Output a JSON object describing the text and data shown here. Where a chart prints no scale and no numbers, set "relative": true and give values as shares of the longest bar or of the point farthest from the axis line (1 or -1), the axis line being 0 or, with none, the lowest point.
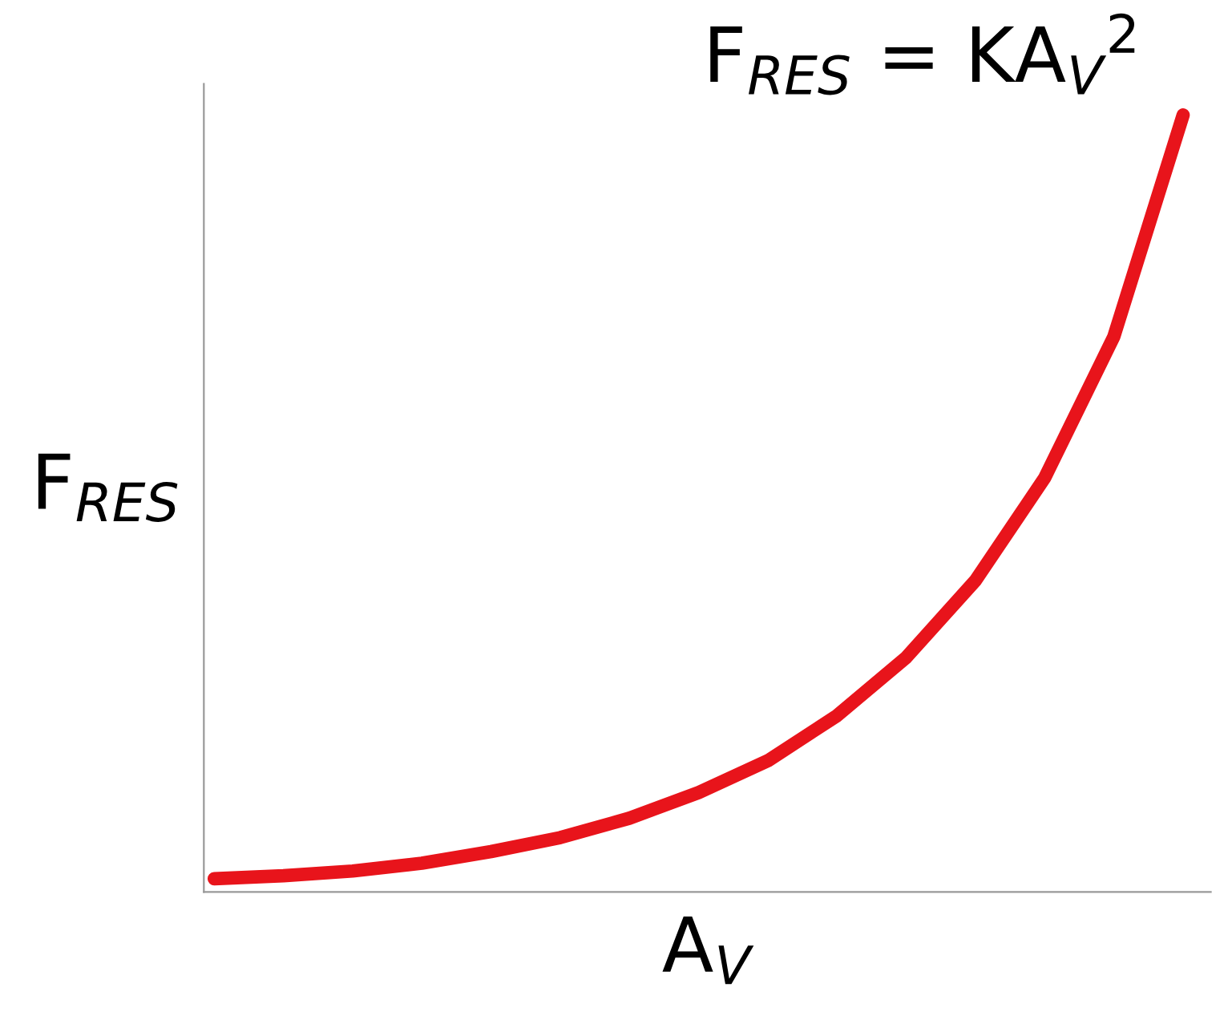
{
  "chart_data": {
    "type": "line",
    "relative": true,
    "title": "F$_{RES}$ = KA$_{V}$$^{2}$",
    "xlabel": "A$_{V}$",
    "ylabel": "F$_{RES}$",
    "categories": [
      null,
      null,
      null,
      null,
      null,
      null,
      null,
      null,
      null,
      null,
      null,
      null,
      null,
      null,
      null
    ],
    "series": [
      {
        "color": "#e8141b",
        "values": [
          0.017,
          0.021,
          0.027,
          0.037,
          0.052,
          0.07,
          0.095,
          0.128,
          0.169,
          0.227,
          0.302,
          0.401,
          0.533,
          0.715,
          1
        ]
      }
    ],
    "grid": false,
    "legend": false,
    "tick_labels": false,
    "marker": "none",
    "line_style": "solid"
  }
}
